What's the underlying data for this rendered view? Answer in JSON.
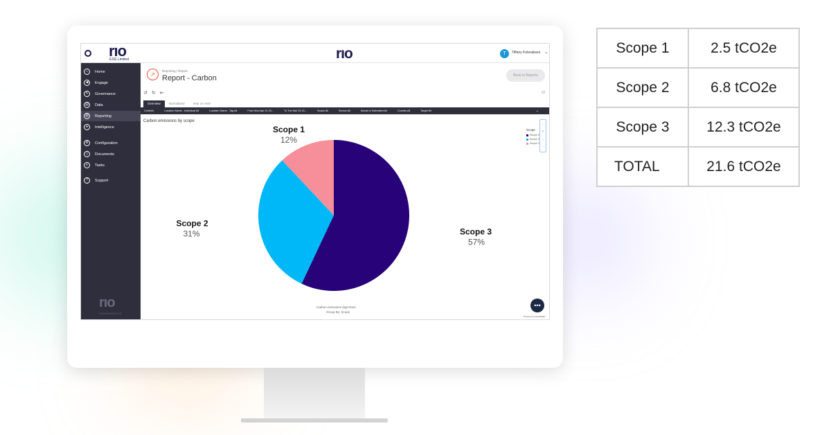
{
  "app": {
    "org_logo": "rıo",
    "org_name": "ESG Limited",
    "center_logo": "rıo",
    "user_initial": "T",
    "user_name": "Tiffany Kolesakara"
  },
  "sidebar": {
    "items": [
      {
        "label": "Home",
        "icon": "home-icon",
        "glyph": "⌂"
      },
      {
        "label": "Engage",
        "icon": "megaphone-icon",
        "glyph": "◀"
      },
      {
        "label": "Governance",
        "icon": "pen-icon",
        "glyph": "✎"
      },
      {
        "label": "Data",
        "icon": "chart-icon",
        "glyph": "▤"
      },
      {
        "label": "Reporting",
        "icon": "report-icon",
        "glyph": "▥"
      },
      {
        "label": "Intelligence",
        "icon": "bulb-icon",
        "glyph": "●"
      },
      {
        "label": "Configuration",
        "icon": "gear-icon",
        "glyph": "⚙"
      },
      {
        "label": "Documents",
        "icon": "document-icon",
        "glyph": "▯"
      },
      {
        "label": "Tasks",
        "icon": "tasks-icon",
        "glyph": "≡"
      },
      {
        "label": "Support",
        "icon": "help-icon",
        "glyph": "?"
      }
    ],
    "footer_logo": "rıo",
    "footer_copyright": "© 2019 Rio ESG LTD"
  },
  "header": {
    "breadcrumb": "Reporting / Report",
    "title": "Report - Carbon",
    "back_label": "Back to Reports"
  },
  "tabs": [
    "Overview",
    "Normalised",
    "Year on Year"
  ],
  "controls": [
    "Controls",
    "Location Name - Individual All",
    "Location Name - Tag All",
    "From Mon Apr 01 20...",
    "To Tue Mar 31 20...",
    "Scope All",
    "Source All",
    "Actual or Estimated All",
    "Country All",
    "Target All"
  ],
  "chart": {
    "legend_title": "Scope",
    "legend_items": [
      "Scope 3",
      "Scope 2",
      "Scope 1"
    ],
    "x_caption": "Carbon emissions (kgCO2e)",
    "x_sub": "Group By: Scope",
    "powered_by": "Powered by QuickSight"
  },
  "chart_data": {
    "type": "pie",
    "title": "Carbon emissions by scope",
    "categories": [
      "Scope 1",
      "Scope 2",
      "Scope 3"
    ],
    "values": [
      12,
      31,
      57
    ],
    "value_labels": [
      "12%",
      "31%",
      "57%"
    ],
    "colors": [
      "#f78f9a",
      "#00b8f7",
      "#280278"
    ],
    "legend_placement": "top-right"
  },
  "summary": {
    "rows": [
      {
        "label": "Scope 1",
        "value": "2.5 tCO2e"
      },
      {
        "label": "Scope 2",
        "value": "6.8 tCO2e"
      },
      {
        "label": "Scope 3",
        "value": "12.3 tCO2e"
      },
      {
        "label": "TOTAL",
        "value": "21.6 tCO2e"
      }
    ]
  }
}
